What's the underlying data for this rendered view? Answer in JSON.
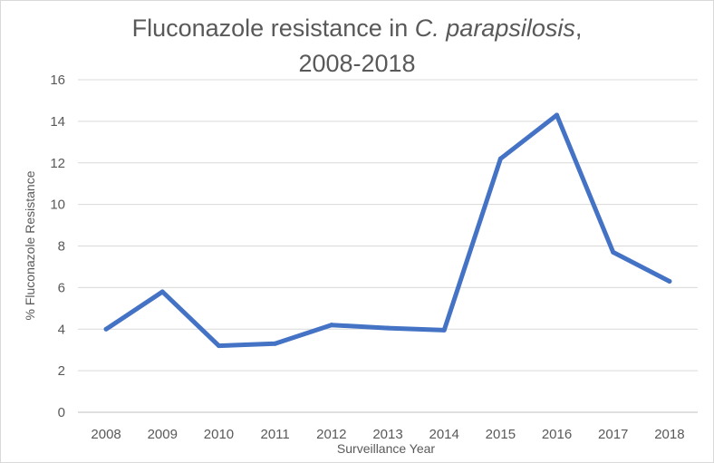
{
  "chart_data": {
    "type": "line",
    "title_line1_regular": "Fluconazole resistance in ",
    "title_line1_italic": "C. parapsilosis",
    "title_line1_suffix": ",",
    "title_line2": "2008-2018",
    "xlabel": "Surveillance Year",
    "ylabel": "% Fluconazole Resistance",
    "categories": [
      "2008",
      "2009",
      "2010",
      "2011",
      "2012",
      "2013",
      "2014",
      "2015",
      "2016",
      "2017",
      "2018"
    ],
    "series": [
      {
        "values": [
          4.0,
          5.8,
          3.2,
          3.3,
          4.2,
          4.05,
          3.95,
          12.2,
          14.3,
          7.7,
          6.3
        ],
        "color": "#4472c4"
      }
    ],
    "ylim": [
      0,
      16
    ],
    "yticks": [
      0,
      2,
      4,
      6,
      8,
      10,
      12,
      14,
      16
    ],
    "grid": true,
    "legend": "none"
  }
}
